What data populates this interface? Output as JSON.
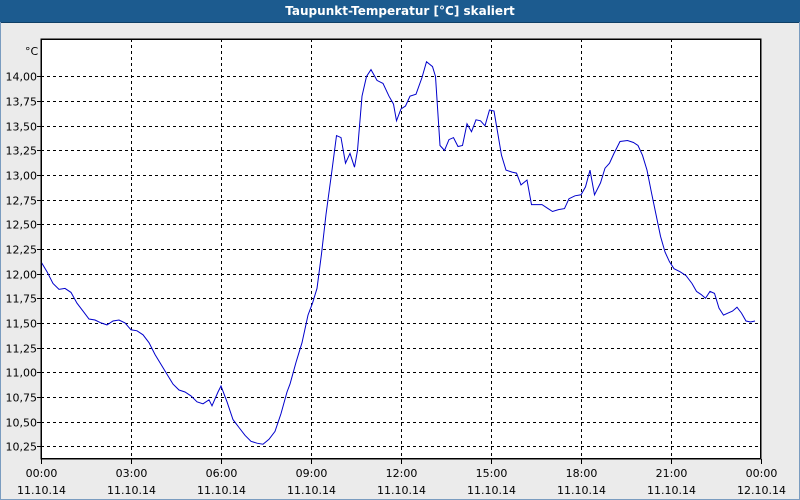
{
  "window": {
    "title": "Taupunkt-Temperatur [°C] skaliert"
  },
  "chart_data": {
    "type": "line",
    "title": "Taupunkt-Temperatur [°C] skaliert",
    "ylabel": "°C",
    "xlabel": "",
    "ylim": [
      10.12,
      14.38
    ],
    "y_ticks": [
      "14,00",
      "13,75",
      "13,50",
      "13,25",
      "13,00",
      "12,75",
      "12,50",
      "12,25",
      "12,00",
      "11,75",
      "11,50",
      "11,25",
      "11,00",
      "10,75",
      "10,50",
      "10,25"
    ],
    "y_tick_values": [
      14.0,
      13.75,
      13.5,
      13.25,
      13.0,
      12.75,
      12.5,
      12.25,
      12.0,
      11.75,
      11.5,
      11.25,
      11.0,
      10.75,
      10.5,
      10.25
    ],
    "x_ticks": [
      {
        "time": "00:00",
        "date": "11.10.14"
      },
      {
        "time": "03:00",
        "date": "11.10.14"
      },
      {
        "time": "06:00",
        "date": "11.10.14"
      },
      {
        "time": "09:00",
        "date": "11.10.14"
      },
      {
        "time": "12:00",
        "date": "11.10.14"
      },
      {
        "time": "15:00",
        "date": "11.10.14"
      },
      {
        "time": "18:00",
        "date": "11.10.14"
      },
      {
        "time": "21:00",
        "date": "11.10.14"
      },
      {
        "time": "00:00",
        "date": "12.10.14"
      }
    ],
    "xlim_hours": [
      0,
      24
    ],
    "grid": true,
    "series": [
      {
        "color": "#0000cc",
        "points": [
          [
            0.0,
            12.12
          ],
          [
            0.2,
            12.02
          ],
          [
            0.4,
            11.9
          ],
          [
            0.6,
            11.84
          ],
          [
            0.8,
            11.85
          ],
          [
            1.0,
            11.81
          ],
          [
            1.2,
            11.7
          ],
          [
            1.4,
            11.62
          ],
          [
            1.6,
            11.54
          ],
          [
            1.8,
            11.53
          ],
          [
            2.0,
            11.5
          ],
          [
            2.2,
            11.48
          ],
          [
            2.4,
            11.52
          ],
          [
            2.6,
            11.53
          ],
          [
            2.8,
            11.5
          ],
          [
            3.0,
            11.43
          ],
          [
            3.2,
            11.42
          ],
          [
            3.4,
            11.38
          ],
          [
            3.6,
            11.3
          ],
          [
            3.8,
            11.18
          ],
          [
            4.0,
            11.08
          ],
          [
            4.2,
            10.98
          ],
          [
            4.4,
            10.88
          ],
          [
            4.6,
            10.82
          ],
          [
            4.8,
            10.8
          ],
          [
            5.0,
            10.76
          ],
          [
            5.2,
            10.7
          ],
          [
            5.4,
            10.68
          ],
          [
            5.6,
            10.72
          ],
          [
            5.7,
            10.66
          ],
          [
            5.9,
            10.8
          ],
          [
            6.0,
            10.86
          ],
          [
            6.2,
            10.7
          ],
          [
            6.4,
            10.52
          ],
          [
            6.6,
            10.44
          ],
          [
            6.8,
            10.36
          ],
          [
            7.0,
            10.3
          ],
          [
            7.2,
            10.28
          ],
          [
            7.4,
            10.27
          ],
          [
            7.6,
            10.32
          ],
          [
            7.8,
            10.4
          ],
          [
            8.0,
            10.58
          ],
          [
            8.2,
            10.8
          ],
          [
            8.3,
            10.88
          ],
          [
            8.5,
            11.1
          ],
          [
            8.7,
            11.3
          ],
          [
            8.9,
            11.58
          ],
          [
            9.05,
            11.7
          ],
          [
            9.2,
            11.85
          ],
          [
            9.35,
            12.2
          ],
          [
            9.5,
            12.6
          ],
          [
            9.7,
            13.05
          ],
          [
            9.85,
            13.4
          ],
          [
            10.0,
            13.38
          ],
          [
            10.15,
            13.12
          ],
          [
            10.3,
            13.22
          ],
          [
            10.45,
            13.08
          ],
          [
            10.55,
            13.25
          ],
          [
            10.7,
            13.8
          ],
          [
            10.85,
            14.0
          ],
          [
            11.0,
            14.07
          ],
          [
            11.2,
            13.96
          ],
          [
            11.4,
            13.93
          ],
          [
            11.6,
            13.8
          ],
          [
            11.75,
            13.72
          ],
          [
            11.85,
            13.55
          ],
          [
            12.0,
            13.67
          ],
          [
            12.15,
            13.7
          ],
          [
            12.3,
            13.8
          ],
          [
            12.5,
            13.82
          ],
          [
            12.7,
            13.99
          ],
          [
            12.85,
            14.15
          ],
          [
            13.05,
            14.1
          ],
          [
            13.15,
            14.0
          ],
          [
            13.3,
            13.3
          ],
          [
            13.45,
            13.25
          ],
          [
            13.6,
            13.36
          ],
          [
            13.75,
            13.38
          ],
          [
            13.9,
            13.29
          ],
          [
            14.05,
            13.3
          ],
          [
            14.2,
            13.52
          ],
          [
            14.35,
            13.44
          ],
          [
            14.5,
            13.56
          ],
          [
            14.65,
            13.55
          ],
          [
            14.8,
            13.5
          ],
          [
            14.95,
            13.66
          ],
          [
            15.1,
            13.65
          ],
          [
            15.25,
            13.38
          ],
          [
            15.35,
            13.2
          ],
          [
            15.5,
            13.05
          ],
          [
            15.7,
            13.03
          ],
          [
            15.85,
            13.02
          ],
          [
            16.0,
            12.9
          ],
          [
            16.2,
            12.95
          ],
          [
            16.35,
            12.7
          ],
          [
            16.5,
            12.7
          ],
          [
            16.7,
            12.7
          ],
          [
            16.9,
            12.66
          ],
          [
            17.05,
            12.63
          ],
          [
            17.25,
            12.65
          ],
          [
            17.45,
            12.66
          ],
          [
            17.6,
            12.76
          ],
          [
            17.8,
            12.79
          ],
          [
            18.0,
            12.8
          ],
          [
            18.15,
            12.88
          ],
          [
            18.3,
            13.05
          ],
          [
            18.45,
            12.8
          ],
          [
            18.65,
            12.92
          ],
          [
            18.8,
            13.07
          ],
          [
            18.95,
            13.12
          ],
          [
            19.1,
            13.22
          ],
          [
            19.3,
            13.34
          ],
          [
            19.55,
            13.35
          ],
          [
            19.75,
            13.33
          ],
          [
            19.9,
            13.3
          ],
          [
            20.05,
            13.2
          ],
          [
            20.2,
            13.05
          ],
          [
            20.35,
            12.82
          ],
          [
            20.5,
            12.6
          ],
          [
            20.65,
            12.38
          ],
          [
            20.8,
            12.22
          ],
          [
            20.95,
            12.12
          ],
          [
            21.1,
            12.05
          ],
          [
            21.3,
            12.02
          ],
          [
            21.5,
            11.98
          ],
          [
            21.7,
            11.9
          ],
          [
            21.85,
            11.82
          ],
          [
            22.0,
            11.79
          ],
          [
            22.15,
            11.75
          ],
          [
            22.3,
            11.82
          ],
          [
            22.45,
            11.8
          ],
          [
            22.6,
            11.65
          ],
          [
            22.75,
            11.58
          ],
          [
            22.9,
            11.6
          ],
          [
            23.05,
            11.62
          ],
          [
            23.2,
            11.66
          ],
          [
            23.35,
            11.6
          ],
          [
            23.5,
            11.52
          ],
          [
            23.65,
            11.51
          ],
          [
            23.8,
            11.52
          ]
        ]
      }
    ]
  }
}
